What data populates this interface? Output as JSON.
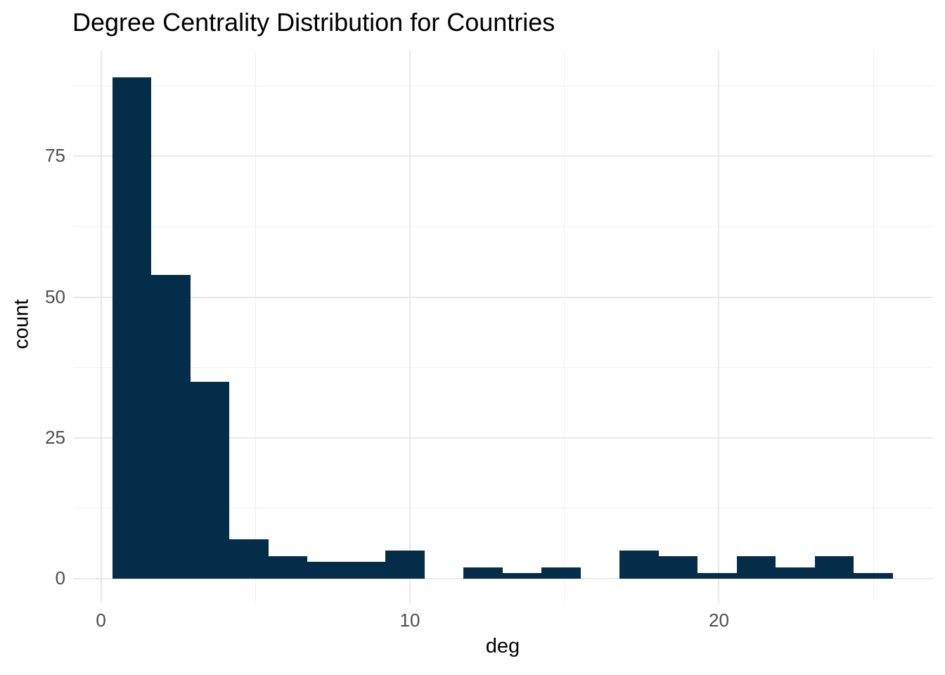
{
  "chart_data": {
    "type": "bar",
    "subtype": "histogram",
    "title": "Degree Centrality Distribution for Countries",
    "xlabel": "deg",
    "ylabel": "count",
    "legend": false,
    "grid": true,
    "bin_start": 0.368,
    "bin_width": 1.2632,
    "counts": [
      89,
      54,
      35,
      7,
      4,
      3,
      3,
      5,
      0,
      2,
      1,
      2,
      0,
      5,
      4,
      1,
      4,
      2,
      4,
      1
    ],
    "bin_centers": [
      1,
      2.26,
      3.53,
      4.79,
      6.05,
      7.32,
      8.58,
      9.84,
      11.11,
      12.37,
      13.63,
      14.89,
      16.16,
      17.42,
      18.68,
      19.95,
      21.21,
      22.47,
      23.74,
      25
    ],
    "x_axis": {
      "tick_labels": [
        "0",
        "10",
        "20"
      ],
      "major_ticks": [
        0,
        10,
        20
      ],
      "minor_ticks": [
        5,
        15,
        25
      ],
      "domain": [
        -0.9,
        26.93
      ]
    },
    "y_axis": {
      "tick_labels": [
        "0",
        "25",
        "50",
        "75"
      ],
      "major_ticks": [
        0,
        25,
        50,
        75
      ],
      "minor_ticks": [
        12.5,
        37.5,
        62.5,
        87.5
      ],
      "domain": [
        -4.4,
        93.8
      ]
    },
    "colors": {
      "bar": "#042d4a",
      "grid_major": "#e9e9e9",
      "grid_minor": "#f0f0f0",
      "tick_label": "#4d4d4d",
      "title": "#000000",
      "background": "#ffffff"
    }
  }
}
